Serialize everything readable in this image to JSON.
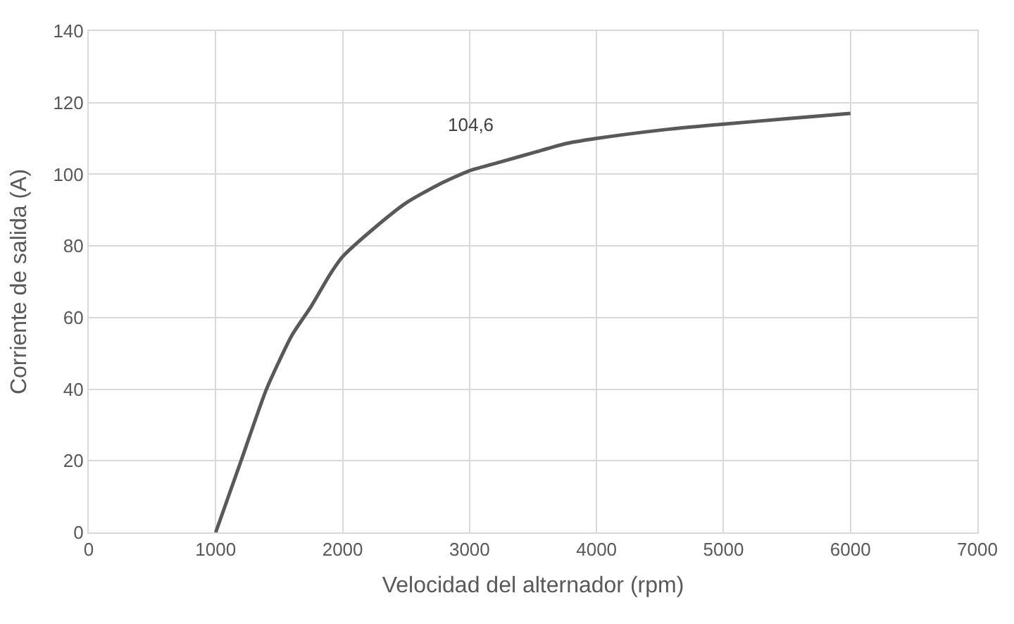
{
  "chart_data": {
    "type": "line",
    "xlabel": "Velocidad del alternador (rpm)",
    "ylabel": "Corriente de salida (A)",
    "x": [
      1000,
      1200,
      1400,
      1600,
      1750,
      1900,
      2000,
      2250,
      2500,
      2750,
      3000,
      3250,
      3500,
      3750,
      4000,
      4500,
      5000,
      5500,
      6000
    ],
    "series": [
      {
        "color": "#595959",
        "values": [
          0,
          20,
          40,
          55,
          63,
          72,
          77,
          85,
          92,
          97,
          101,
          103.5,
          106,
          108.5,
          110,
          112.3,
          114,
          115.5,
          117
        ]
      }
    ],
    "xlim": [
      0,
      7000
    ],
    "xticks": [
      0,
      1000,
      2000,
      3000,
      4000,
      5000,
      6000,
      7000
    ],
    "ylim": [
      0,
      140
    ],
    "yticks": [
      0,
      20,
      40,
      60,
      80,
      100,
      120,
      140
    ],
    "annotations": [
      "104,6"
    ],
    "grid": true,
    "marker": "none",
    "line_style": "solid"
  }
}
